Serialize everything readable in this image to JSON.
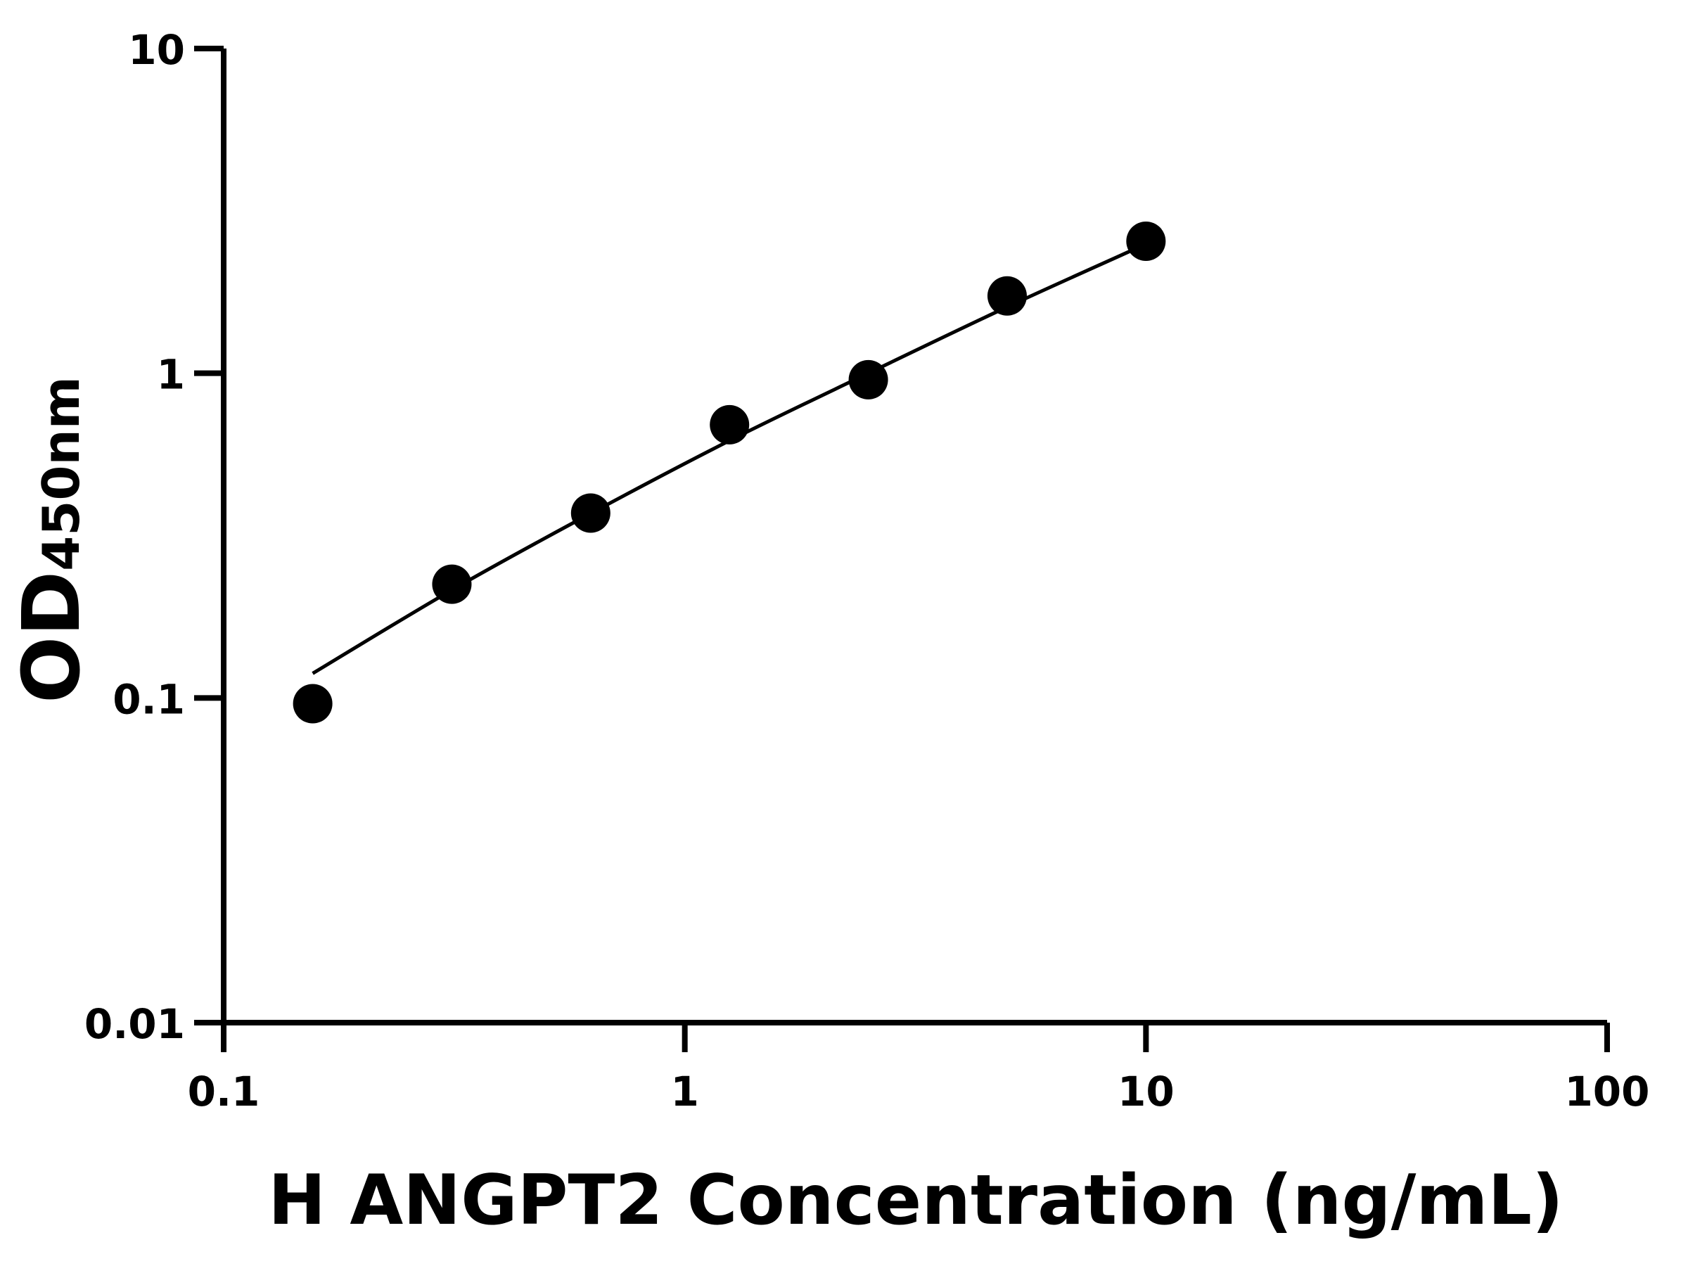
{
  "chart_data": {
    "type": "scatter",
    "xlabel": "H ANGPT2 Concentration (ng/mL)",
    "ylabel_main": "OD",
    "ylabel_sub": "450nm",
    "x_scale": "log",
    "y_scale": "log",
    "xlim": [
      0.1,
      100
    ],
    "ylim": [
      0.01,
      10
    ],
    "x_ticks": [
      {
        "value": 0.1,
        "label": "0.1"
      },
      {
        "value": 1,
        "label": "1"
      },
      {
        "value": 10,
        "label": "10"
      },
      {
        "value": 100,
        "label": "100"
      }
    ],
    "y_ticks": [
      {
        "value": 0.01,
        "label": "0.01"
      },
      {
        "value": 0.1,
        "label": "0.1"
      },
      {
        "value": 1,
        "label": "1"
      },
      {
        "value": 10,
        "label": "10"
      }
    ],
    "grid": false,
    "points": {
      "x": [
        0.156,
        0.3125,
        0.625,
        1.25,
        2.5,
        5,
        10
      ],
      "y": [
        0.096,
        0.224,
        0.371,
        0.694,
        0.955,
        1.73,
        2.55
      ]
    },
    "fit_curve": {
      "x": [
        0.156,
        0.3125,
        0.625,
        1.25,
        2.5,
        5,
        10
      ],
      "y": [
        0.119,
        0.215,
        0.37,
        0.62,
        1.0,
        1.6,
        2.5
      ]
    },
    "colors": {
      "marker": "#000000",
      "line": "#000000",
      "axis": "#000000"
    }
  }
}
